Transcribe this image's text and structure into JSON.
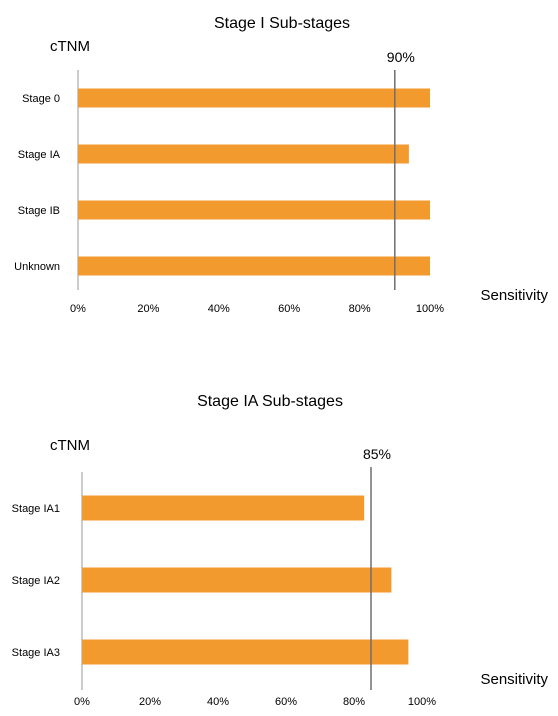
{
  "chart_data": [
    {
      "type": "bar",
      "orientation": "horizontal",
      "title": "Stage I Sub-stages",
      "ylabel": "cTNM",
      "xlabel": "Sensitivity",
      "categories": [
        "Stage 0",
        "Stage IA",
        "Stage IB",
        "Unknown"
      ],
      "values": [
        100,
        94,
        100,
        100
      ],
      "xlim": [
        0,
        100
      ],
      "xticks": [
        "0%",
        "20%",
        "40%",
        "60%",
        "80%",
        "100%"
      ],
      "reference_line": {
        "value": 90,
        "label": "90%"
      },
      "bar_color": "#f39a2e",
      "grid": false
    },
    {
      "type": "bar",
      "orientation": "horizontal",
      "title": "Stage IA Sub-stages",
      "ylabel": "cTNM",
      "xlabel": "Sensitivity",
      "categories": [
        "Stage IA1",
        "Stage IA2",
        "Stage IA3"
      ],
      "values": [
        83,
        91,
        96
      ],
      "xlim": [
        0,
        100
      ],
      "xticks": [
        "0%",
        "20%",
        "40%",
        "60%",
        "80%",
        "100%"
      ],
      "reference_line": {
        "value": 85,
        "label": "85%"
      },
      "bar_color": "#f39a2e",
      "grid": false
    }
  ]
}
